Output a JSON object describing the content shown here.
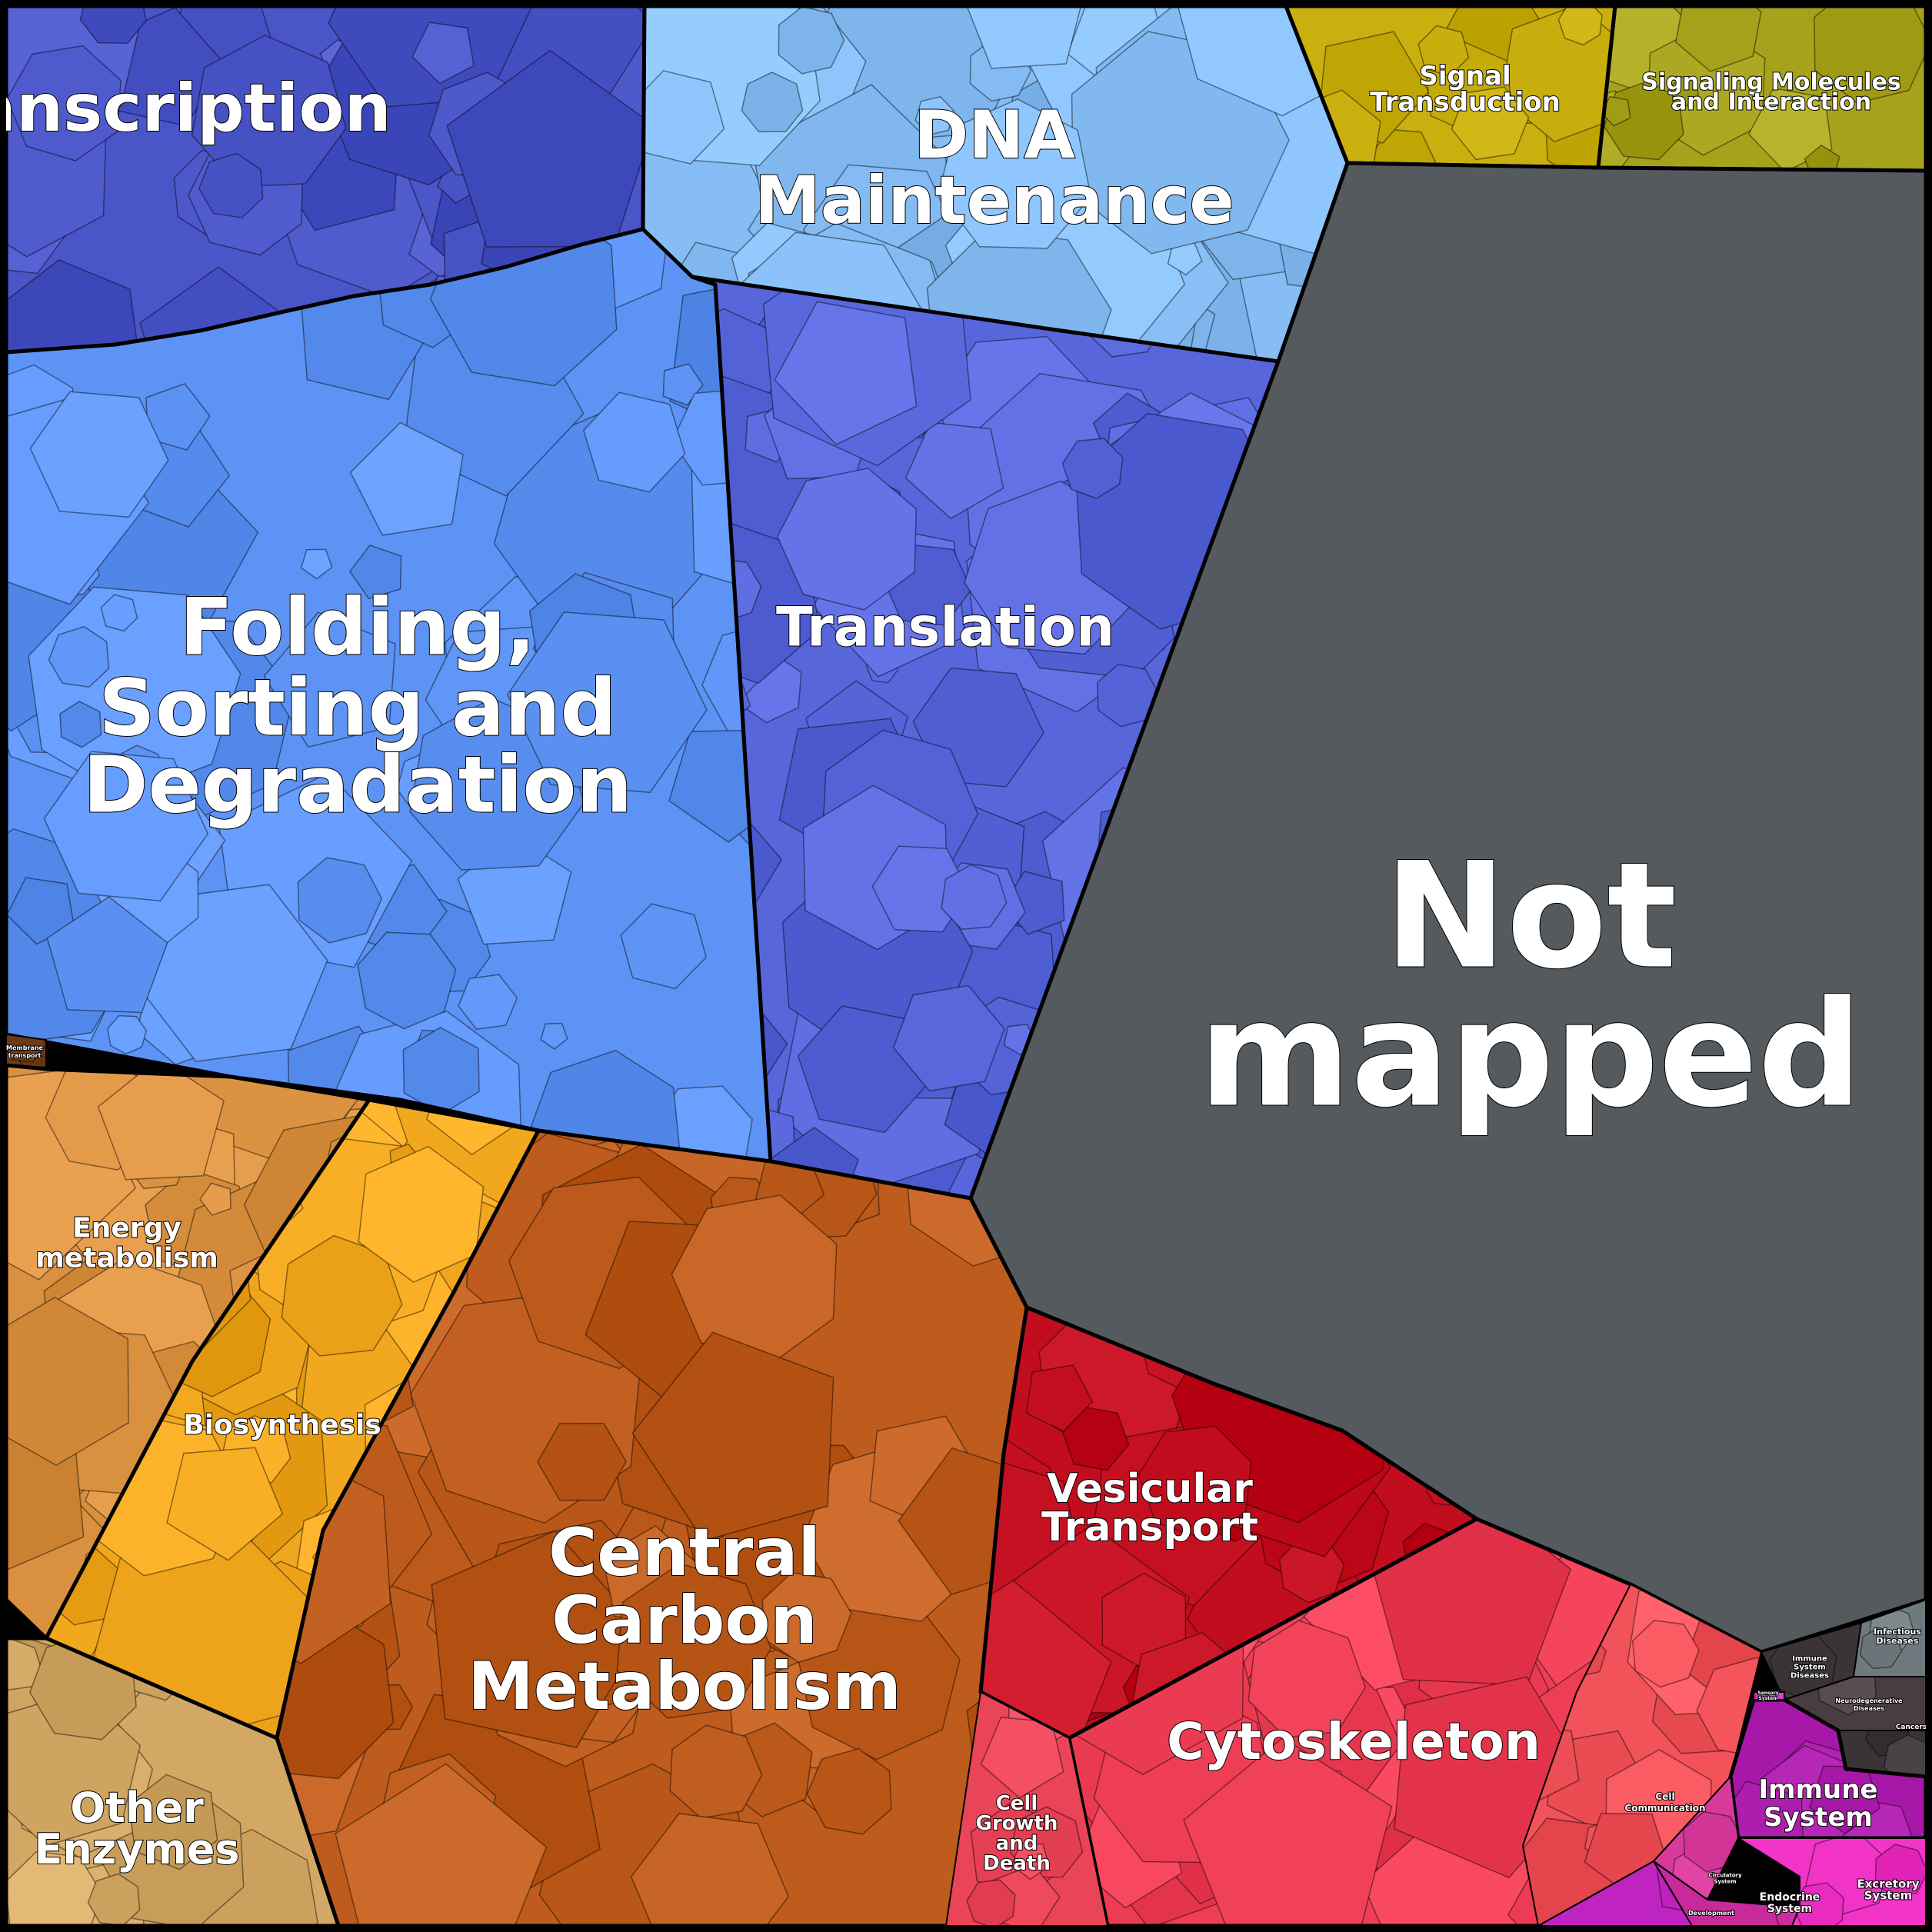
{
  "chart_data": {
    "type": "treemap",
    "title": "",
    "cells": [
      {
        "label": "Transcription",
        "color": "#4a55c8"
      },
      {
        "label": "DNA Maintenance",
        "color": "#86bdf5"
      },
      {
        "label": "Signal Transduction",
        "color": "#c9b00e"
      },
      {
        "label": "Signaling Molecules and Interaction",
        "color": "#a7a21c"
      },
      {
        "label": "Folding, Sorting and Degradation",
        "color": "#5d93f4"
      },
      {
        "label": "Translation",
        "color": "#5866dc"
      },
      {
        "label": "Not mapped",
        "color": "#555a5e"
      },
      {
        "label": "Membrane transport",
        "color": "#6e3d16"
      },
      {
        "label": "Energy metabolism",
        "color": "#d99140"
      },
      {
        "label": "Biosynthesis",
        "color": "#f2a81e"
      },
      {
        "label": "Central Carbon Metabolism",
        "color": "#bd5c1d"
      },
      {
        "label": "Other Enzymes",
        "color": "#d2a864"
      },
      {
        "label": "Vesicular Transport",
        "color": "#c20d1f"
      },
      {
        "label": "Cytoskeleton",
        "color": "#ee3e56"
      },
      {
        "label": "Cell Growth and Death",
        "color": "#e94458"
      },
      {
        "label": "Cell Communication",
        "color": "#f2525a"
      },
      {
        "label": "Immune System Diseases",
        "color": "#3b3436"
      },
      {
        "label": "Infectious Diseases",
        "color": "#6f7a7e"
      },
      {
        "label": "Neurodegenerative Diseases",
        "color": "#4a3c43"
      },
      {
        "label": "Cancers",
        "color": "#3a3438"
      },
      {
        "label": "Immune System",
        "color": "#a818a8"
      },
      {
        "label": "Circulatory System",
        "color": "#d83a9c"
      },
      {
        "label": "Endocrine System",
        "color": "#c82a9c"
      },
      {
        "label": "Excretory System",
        "color": "#f234c8"
      },
      {
        "label": "Development",
        "color": "#c024c0"
      },
      {
        "label": "Sensory System",
        "color": "#d835d0"
      }
    ]
  }
}
